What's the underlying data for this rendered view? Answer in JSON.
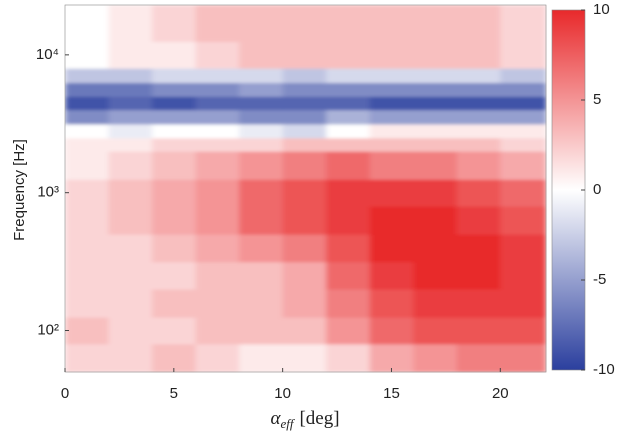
{
  "chart_data": {
    "type": "heatmap",
    "ylabel": "Frequency [Hz]",
    "xlabel": {
      "symbol": "α",
      "subscript": "eff",
      "unit": "[deg]"
    },
    "x_edges": [
      0,
      2,
      4,
      6,
      8,
      10,
      12,
      14,
      16,
      18,
      20,
      22.1
    ],
    "y_edges": [
      50,
      80,
      125,
      200,
      315,
      500,
      800,
      1250,
      2000,
      2500,
      3150,
      4000,
      5000,
      6300,
      8000,
      12500,
      23000
    ],
    "z": [
      [
        2,
        2,
        3,
        2,
        1,
        1,
        2,
        4,
        5,
        6,
        6
      ],
      [
        3,
        2,
        2,
        3,
        3,
        3,
        5,
        7,
        8,
        8,
        8
      ],
      [
        2,
        2,
        3,
        3,
        3,
        4,
        6,
        8,
        9,
        9,
        9
      ],
      [
        2,
        2,
        2,
        3,
        3,
        4,
        7,
        9,
        10,
        10,
        9
      ],
      [
        2,
        2,
        3,
        4,
        5,
        6,
        8,
        10,
        10,
        10,
        9
      ],
      [
        2,
        3,
        4,
        5,
        7,
        8,
        9,
        10,
        10,
        9,
        8
      ],
      [
        2,
        3,
        4,
        5,
        7,
        8,
        9,
        9,
        9,
        8,
        7
      ],
      [
        1,
        2,
        3,
        4,
        5,
        6,
        7,
        6,
        6,
        5,
        4
      ],
      [
        1,
        1,
        2,
        2,
        2,
        3,
        3,
        3,
        3,
        3,
        2
      ],
      [
        0,
        -1,
        0,
        0,
        -1,
        -2,
        0,
        1,
        1,
        1,
        1
      ],
      [
        -6,
        -5,
        -5,
        -5,
        -6,
        -6,
        -4,
        -5,
        -5,
        -5,
        -5
      ],
      [
        -9,
        -8,
        -9,
        -8,
        -8,
        -8,
        -8,
        -9,
        -9,
        -9,
        -9
      ],
      [
        -7,
        -7,
        -6,
        -6,
        -5,
        -6,
        -6,
        -6,
        -6,
        -6,
        -6
      ],
      [
        -3,
        -3,
        -2,
        -2,
        -2,
        -3,
        -2,
        -2,
        -2,
        -2,
        -3
      ],
      [
        0,
        1,
        1,
        2,
        3,
        3,
        3,
        3,
        3,
        3,
        2
      ],
      [
        0,
        1,
        2,
        3,
        3,
        3,
        3,
        3,
        3,
        3,
        2
      ]
    ],
    "xlim": [
      0,
      22.1
    ],
    "xticks": [
      0,
      5,
      10,
      15,
      20
    ],
    "ylim": [
      50,
      23000
    ],
    "log_y": true,
    "yticks": [
      {
        "value": 100,
        "label": "10²"
      },
      {
        "value": 1000,
        "label": "10³"
      },
      {
        "value": 10000,
        "label": "10⁴"
      }
    ],
    "colormap": [
      "#2b3f9e",
      "#ffffff",
      "#e8292b"
    ],
    "clim": [
      -10,
      10
    ],
    "cticks": [
      -10,
      -5,
      0,
      5,
      10
    ]
  }
}
